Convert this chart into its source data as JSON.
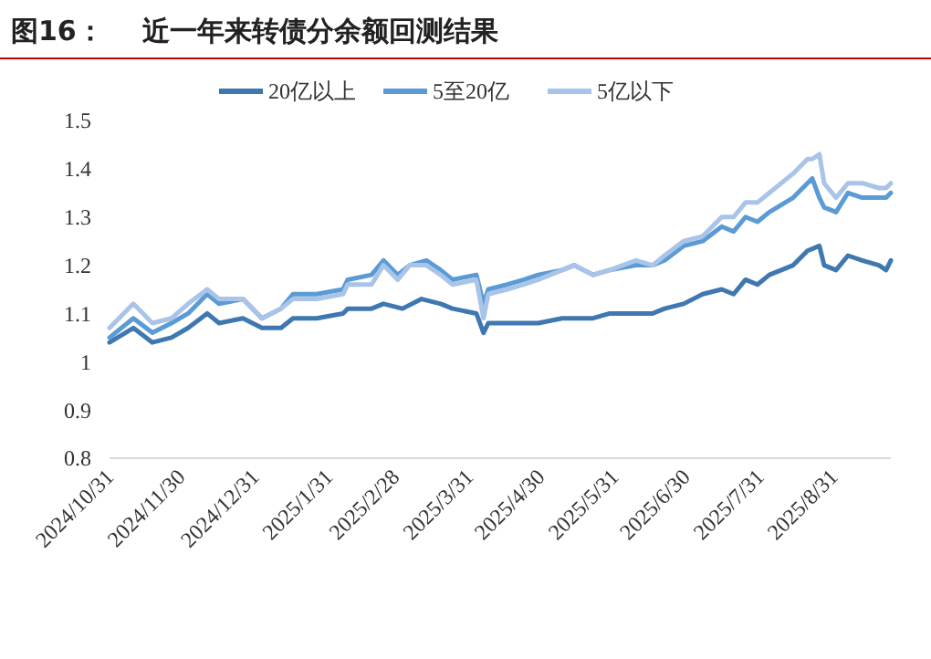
{
  "chart_data": {
    "type": "line",
    "title": "图16：    近一年来转债分余额回测结果",
    "xlim": [
      "2024-10-31",
      "2025-09-24"
    ],
    "xticks": [
      {
        "value": "2024-10-31",
        "label": "2024/10/31"
      },
      {
        "value": "2024-11-30",
        "label": "2024/11/30"
      },
      {
        "value": "2024-12-31",
        "label": "2024/12/31"
      },
      {
        "value": "2025-01-31",
        "label": "2025/1/31"
      },
      {
        "value": "2025-02-28",
        "label": "2025/2/28"
      },
      {
        "value": "2025-03-31",
        "label": "2025/3/31"
      },
      {
        "value": "2025-04-30",
        "label": "2025/4/30"
      },
      {
        "value": "2025-05-31",
        "label": "2025/5/31"
      },
      {
        "value": "2025-06-30",
        "label": "2025/6/30"
      },
      {
        "value": "2025-07-31",
        "label": "2025/7/31"
      },
      {
        "value": "2025-08-31",
        "label": "2025/8/31"
      }
    ],
    "ylim": [
      0.8,
      1.5
    ],
    "yticks": [
      0.8,
      0.9,
      1,
      1.1,
      1.2,
      1.3,
      1.4,
      1.5
    ],
    "grid": false,
    "legend": "top",
    "marker": "none",
    "line_style": "solid",
    "series": [
      {
        "name": "20亿以上",
        "color": "#3f78b0",
        "x": [
          "2024-10-31",
          "2024-11-10",
          "2024-11-18",
          "2024-11-26",
          "2024-12-03",
          "2024-12-11",
          "2024-12-16",
          "2024-12-26",
          "2025-01-03",
          "2025-01-11",
          "2025-01-16",
          "2025-01-26",
          "2025-02-06",
          "2025-02-08",
          "2025-02-18",
          "2025-02-23",
          "2025-03-03",
          "2025-03-11",
          "2025-03-19",
          "2025-03-24",
          "2025-04-03",
          "2025-04-06",
          "2025-04-08",
          "2025-04-16",
          "2025-04-23",
          "2025-04-29",
          "2025-05-09",
          "2025-05-14",
          "2025-05-22",
          "2025-05-29",
          "2025-06-09",
          "2025-06-16",
          "2025-06-21",
          "2025-06-29",
          "2025-07-07",
          "2025-07-15",
          "2025-07-20",
          "2025-07-25",
          "2025-07-30",
          "2025-08-04",
          "2025-08-14",
          "2025-08-20",
          "2025-08-25",
          "2025-08-27",
          "2025-09-01",
          "2025-09-06",
          "2025-09-12",
          "2025-09-19",
          "2025-09-22",
          "2025-09-24"
        ],
        "values": [
          1.04,
          1.07,
          1.04,
          1.05,
          1.07,
          1.1,
          1.08,
          1.09,
          1.07,
          1.07,
          1.09,
          1.09,
          1.1,
          1.11,
          1.11,
          1.12,
          1.11,
          1.13,
          1.12,
          1.11,
          1.1,
          1.06,
          1.08,
          1.08,
          1.08,
          1.08,
          1.09,
          1.09,
          1.09,
          1.1,
          1.1,
          1.1,
          1.11,
          1.12,
          1.14,
          1.15,
          1.14,
          1.17,
          1.16,
          1.18,
          1.2,
          1.23,
          1.24,
          1.2,
          1.19,
          1.22,
          1.21,
          1.2,
          1.19,
          1.21
        ]
      },
      {
        "name": "5至20亿",
        "color": "#5b9bd5",
        "x": [
          "2024-10-31",
          "2024-11-10",
          "2024-11-18",
          "2024-11-26",
          "2024-12-03",
          "2024-12-11",
          "2024-12-16",
          "2024-12-26",
          "2025-01-03",
          "2025-01-11",
          "2025-01-16",
          "2025-01-26",
          "2025-02-06",
          "2025-02-08",
          "2025-02-18",
          "2025-02-23",
          "2025-03-01",
          "2025-03-06",
          "2025-03-13",
          "2025-03-19",
          "2025-03-24",
          "2025-04-03",
          "2025-04-06",
          "2025-04-08",
          "2025-04-16",
          "2025-04-23",
          "2025-04-29",
          "2025-05-09",
          "2025-05-14",
          "2025-05-22",
          "2025-05-29",
          "2025-06-09",
          "2025-06-16",
          "2025-06-21",
          "2025-06-29",
          "2025-07-07",
          "2025-07-15",
          "2025-07-20",
          "2025-07-25",
          "2025-07-30",
          "2025-08-04",
          "2025-08-14",
          "2025-08-20",
          "2025-08-22",
          "2025-08-25",
          "2025-08-27",
          "2025-09-01",
          "2025-09-06",
          "2025-09-12",
          "2025-09-19",
          "2025-09-22",
          "2025-09-24"
        ],
        "values": [
          1.05,
          1.09,
          1.06,
          1.08,
          1.1,
          1.14,
          1.12,
          1.13,
          1.09,
          1.11,
          1.14,
          1.14,
          1.15,
          1.17,
          1.18,
          1.21,
          1.18,
          1.2,
          1.21,
          1.19,
          1.17,
          1.18,
          1.12,
          1.15,
          1.16,
          1.17,
          1.18,
          1.19,
          1.2,
          1.18,
          1.19,
          1.2,
          1.2,
          1.21,
          1.24,
          1.25,
          1.28,
          1.27,
          1.3,
          1.29,
          1.31,
          1.34,
          1.37,
          1.38,
          1.34,
          1.32,
          1.31,
          1.35,
          1.34,
          1.34,
          1.34,
          1.35
        ]
      },
      {
        "name": "5亿以下",
        "color": "#a9c4e8",
        "x": [
          "2024-10-31",
          "2024-11-10",
          "2024-11-18",
          "2024-11-26",
          "2024-12-03",
          "2024-12-11",
          "2024-12-16",
          "2024-12-26",
          "2025-01-03",
          "2025-01-11",
          "2025-01-16",
          "2025-01-26",
          "2025-02-06",
          "2025-02-08",
          "2025-02-18",
          "2025-02-23",
          "2025-03-01",
          "2025-03-06",
          "2025-03-13",
          "2025-03-19",
          "2025-03-24",
          "2025-04-03",
          "2025-04-06",
          "2025-04-08",
          "2025-04-16",
          "2025-04-23",
          "2025-04-29",
          "2025-05-09",
          "2025-05-14",
          "2025-05-22",
          "2025-05-29",
          "2025-06-09",
          "2025-06-16",
          "2025-06-21",
          "2025-06-29",
          "2025-07-07",
          "2025-07-15",
          "2025-07-20",
          "2025-07-25",
          "2025-07-30",
          "2025-08-04",
          "2025-08-14",
          "2025-08-20",
          "2025-08-22",
          "2025-08-25",
          "2025-08-27",
          "2025-09-01",
          "2025-09-06",
          "2025-09-12",
          "2025-09-19",
          "2025-09-22",
          "2025-09-24"
        ],
        "values": [
          1.07,
          1.12,
          1.08,
          1.09,
          1.12,
          1.15,
          1.13,
          1.13,
          1.09,
          1.11,
          1.13,
          1.13,
          1.14,
          1.16,
          1.16,
          1.2,
          1.17,
          1.2,
          1.2,
          1.18,
          1.16,
          1.17,
          1.09,
          1.14,
          1.15,
          1.16,
          1.17,
          1.19,
          1.2,
          1.18,
          1.19,
          1.21,
          1.2,
          1.22,
          1.25,
          1.26,
          1.3,
          1.3,
          1.33,
          1.33,
          1.35,
          1.39,
          1.42,
          1.42,
          1.43,
          1.37,
          1.34,
          1.37,
          1.37,
          1.36,
          1.36,
          1.37
        ]
      }
    ]
  }
}
